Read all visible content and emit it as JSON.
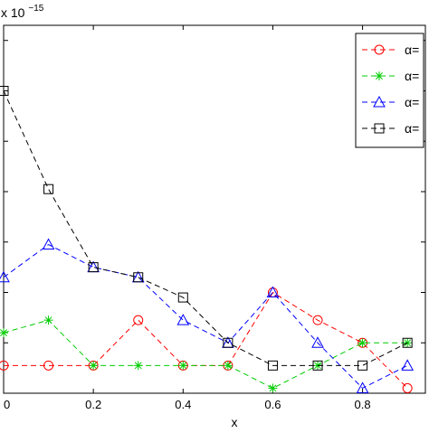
{
  "chart_data": {
    "type": "line",
    "title": "",
    "xlabel": "x",
    "ylabel": "",
    "y_exponent_label": "x 10",
    "y_exponent_power": "−15",
    "xlim": [
      0,
      0.94
    ],
    "ylim": [
      0,
      7.3
    ],
    "x_ticks": [
      0,
      0.2,
      0.4,
      0.6,
      0.8
    ],
    "x_tick_labels": [
      "0",
      "0.2",
      "0.4",
      "0.6",
      "0.8"
    ],
    "y_ticks": [
      0,
      1,
      2,
      3,
      4,
      5,
      6,
      7
    ],
    "grid": false,
    "legend_position": "top-right",
    "x": [
      0,
      0.1,
      0.2,
      0.3,
      0.4,
      0.5,
      0.6,
      0.7,
      0.8,
      0.9
    ],
    "series": [
      {
        "name": "α=",
        "color": "#ff0000",
        "marker": "circle",
        "values": [
          0.55,
          0.55,
          0.55,
          1.45,
          0.55,
          0.55,
          2.0,
          1.45,
          1.0,
          0.1
        ]
      },
      {
        "name": "α=",
        "color": "#00cc00",
        "marker": "asterisk",
        "values": [
          1.2,
          1.45,
          0.55,
          0.55,
          0.55,
          0.55,
          0.1,
          0.55,
          1.0,
          1.0
        ]
      },
      {
        "name": "α=",
        "color": "#0000ff",
        "marker": "triangle",
        "values": [
          2.3,
          2.95,
          2.5,
          2.3,
          1.45,
          1.0,
          2.0,
          1.0,
          0.1,
          0.55
        ]
      },
      {
        "name": "α=",
        "color": "#000000",
        "marker": "square",
        "values": [
          6.0,
          4.05,
          2.5,
          2.3,
          1.9,
          1.0,
          0.55,
          0.55,
          0.55,
          1.0
        ]
      }
    ]
  }
}
